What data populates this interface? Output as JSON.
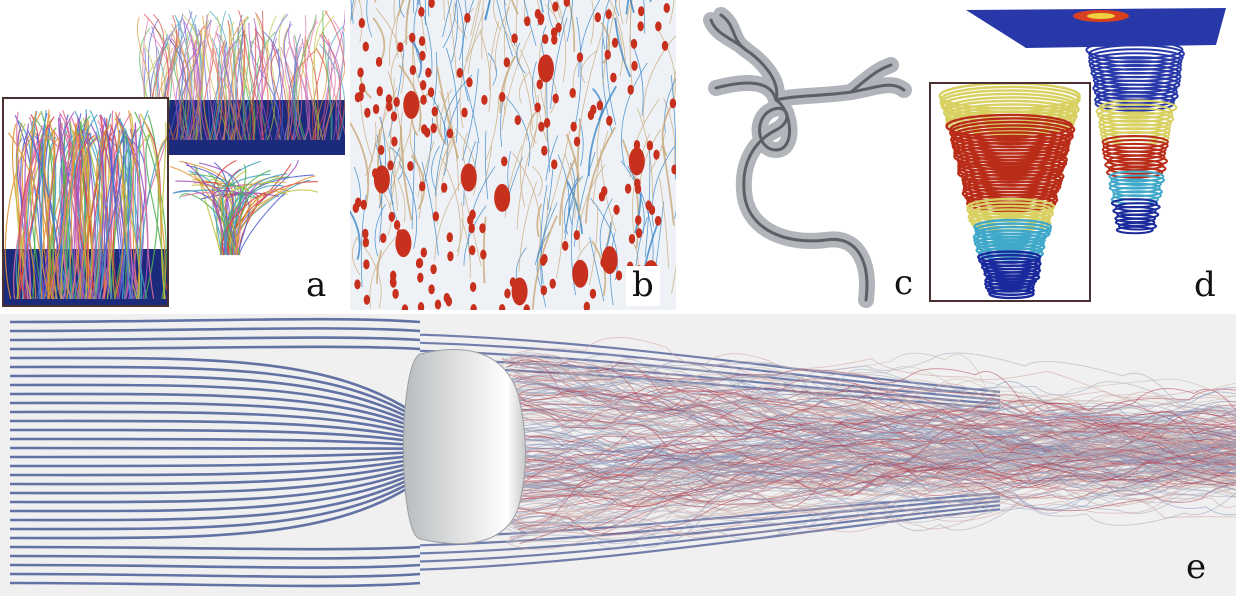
{
  "figure": {
    "panels": [
      {
        "id": "a",
        "label": "a"
      },
      {
        "id": "b",
        "label": "b"
      },
      {
        "id": "c",
        "label": "c"
      },
      {
        "id": "d",
        "label": "d"
      },
      {
        "id": "e",
        "label": "e"
      }
    ]
  },
  "colors": {
    "background": "#ffffff",
    "panel_e_background": "#f0f0f0",
    "streamline_blue": "#5a6aa0",
    "glyph_red": "#c8301e",
    "fiber_tan": "#c8a878",
    "fiber_blue": "#3a84c8",
    "tube_gray": "#8a8e94",
    "spiral_yellow": "#d8d060",
    "spiral_red": "#b82c18",
    "spiral_navy": "#1a2a9c",
    "inset_frame": "#4a3030"
  }
}
